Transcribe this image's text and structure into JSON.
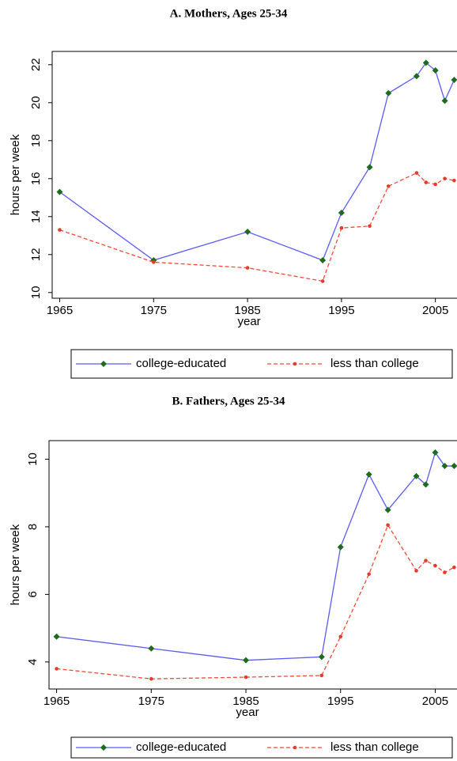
{
  "chart_data": [
    {
      "type": "line",
      "title": "A.  Mothers, Ages 25-34",
      "x_label": "year",
      "y_label": "hours per week",
      "x": [
        1965,
        1975,
        1985,
        1993,
        1995,
        1998,
        2000,
        2003,
        2004,
        2005,
        2006,
        2007
      ],
      "xlim": [
        1964.2,
        2007.3
      ],
      "xticks": [
        1965,
        1975,
        1985,
        1995,
        2005
      ],
      "ylim": [
        9.7,
        22.7
      ],
      "yticks": [
        10,
        12,
        14,
        16,
        18,
        20,
        22
      ],
      "series": [
        {
          "name": "college-educated",
          "color": "#5b5bf5",
          "marker_color": "#1e6b1e",
          "values": [
            15.3,
            11.7,
            13.2,
            11.7,
            14.2,
            16.6,
            20.5,
            21.4,
            22.1,
            21.7,
            20.1,
            21.2
          ]
        },
        {
          "name": "less than college",
          "color": "#f24a3a",
          "marker_color": "#e83a2a",
          "values": [
            13.3,
            11.6,
            11.3,
            10.6,
            13.4,
            13.5,
            15.6,
            16.3,
            15.8,
            15.7,
            16.0,
            15.9
          ]
        }
      ]
    },
    {
      "type": "line",
      "title": "B.  Fathers, Ages 25-34",
      "x_label": "year",
      "y_label": "hours per week",
      "x": [
        1965,
        1975,
        1985,
        1993,
        1995,
        1998,
        2000,
        2003,
        2004,
        2005,
        2006,
        2007
      ],
      "xlim": [
        1964.2,
        2007.3
      ],
      "xticks": [
        1965,
        1975,
        1985,
        1995,
        2005
      ],
      "ylim": [
        3.2,
        10.55
      ],
      "yticks": [
        4,
        6,
        8,
        10
      ],
      "series": [
        {
          "name": "college-educated",
          "color": "#5b5bf5",
          "marker_color": "#1e6b1e",
          "values": [
            4.75,
            4.4,
            4.05,
            4.15,
            7.4,
            9.55,
            8.5,
            9.5,
            9.25,
            10.2,
            9.8,
            9.8
          ]
        },
        {
          "name": "less than college",
          "color": "#f24a3a",
          "marker_color": "#e83a2a",
          "values": [
            3.8,
            3.5,
            3.55,
            3.6,
            4.75,
            6.6,
            8.05,
            6.7,
            7.0,
            6.85,
            6.65,
            6.8
          ]
        }
      ]
    }
  ]
}
